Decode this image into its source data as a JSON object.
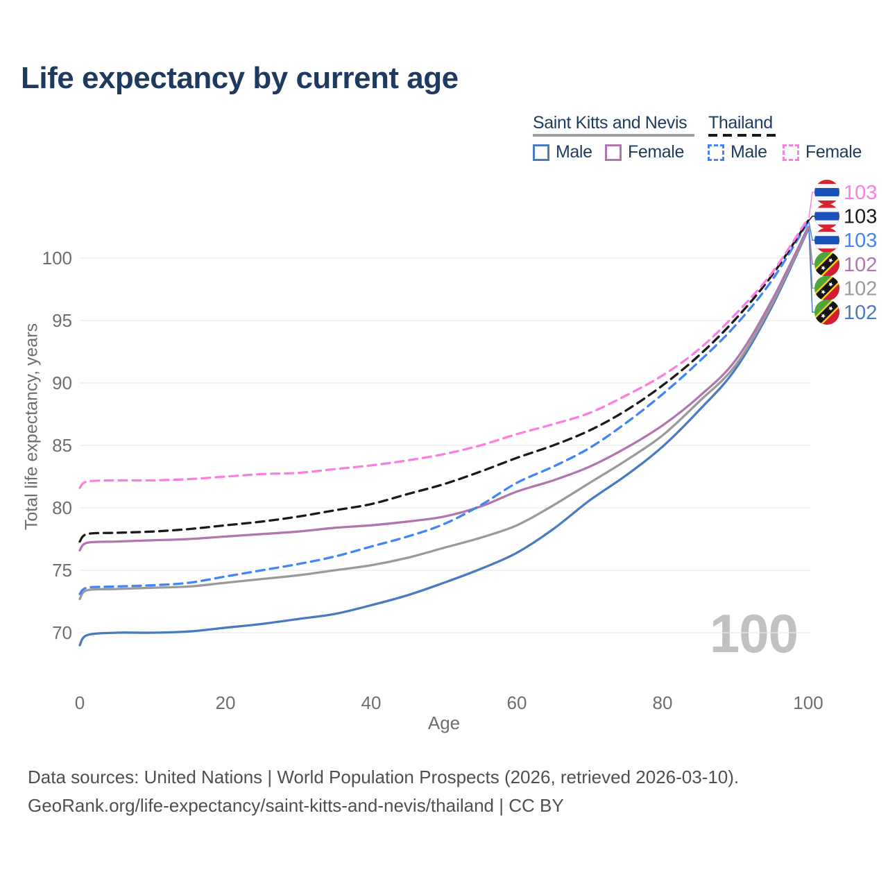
{
  "title": "Life expectancy by current age",
  "legend": {
    "groups": [
      {
        "label": "Saint Kitts and Nevis",
        "line_style": "solid",
        "line_color": "#a0a0a0",
        "items": [
          {
            "label": "Male",
            "color": "#4a7ac1",
            "dashed": false
          },
          {
            "label": "Female",
            "color": "#b176ad",
            "dashed": false
          }
        ]
      },
      {
        "label": "Thailand",
        "line_style": "dashed",
        "line_color": "#1a1a1a",
        "items": [
          {
            "label": "Male",
            "color": "#4285f4",
            "dashed": true
          },
          {
            "label": "Female",
            "color": "#fc7fe0",
            "dashed": true
          }
        ]
      }
    ]
  },
  "footer": {
    "line1": "Data sources: United Nations | World Population Prospects (2026, retrieved 2026-03-10).",
    "line2": "GeoRank.org/life-expectancy/saint-kitts-and-nevis/thailand | CC BY"
  },
  "flags": {
    "thailand": {
      "red": "#d8222f",
      "white": "#f4f5f8",
      "blue": "#1b52ba"
    },
    "saint_kitts_and_nevis": {
      "green": "#4fa53c",
      "red": "#d21f30",
      "black": "#141414",
      "yellow": "#fcd116",
      "star": "#ffffff"
    }
  },
  "chart_data": {
    "type": "line",
    "title": "Life expectancy by current age",
    "xlabel": "Age",
    "ylabel": "Total life expectancy, years",
    "age_counter": "100",
    "xlim": [
      0,
      100
    ],
    "ylim": [
      67,
      104
    ],
    "xticks": [
      0,
      20,
      40,
      60,
      80,
      100
    ],
    "yticks": [
      70,
      75,
      80,
      85,
      90,
      95,
      100
    ],
    "grid": "horizontal",
    "legend_position": "top-right",
    "x": [
      0,
      1,
      5,
      10,
      15,
      20,
      25,
      30,
      35,
      40,
      45,
      50,
      55,
      60,
      65,
      70,
      75,
      80,
      85,
      90,
      95,
      100
    ],
    "series": [
      {
        "name": "Saint Kitts and Nevis Male",
        "country": "Saint Kitts and Nevis",
        "sex": "male",
        "color": "#4a7ac1",
        "dash": false,
        "flag": "saint_kitts_and_nevis",
        "end_label": "102",
        "values": [
          69.0,
          69.8,
          70.0,
          70.0,
          70.1,
          70.4,
          70.7,
          71.1,
          71.5,
          72.2,
          73.0,
          74.0,
          75.1,
          76.4,
          78.3,
          80.6,
          82.6,
          84.9,
          87.8,
          91.1,
          96.1,
          102.3
        ]
      },
      {
        "name": "Saint Kitts and Nevis Both sexes",
        "country": "Saint Kitts and Nevis",
        "sex": "both",
        "color": "#9a9a9a",
        "dash": false,
        "flag": "saint_kitts_and_nevis",
        "end_label": "102",
        "values": [
          72.7,
          73.4,
          73.5,
          73.6,
          73.7,
          74.0,
          74.3,
          74.6,
          75.0,
          75.4,
          76.0,
          76.8,
          77.6,
          78.6,
          80.2,
          82.0,
          83.8,
          85.8,
          88.5,
          91.4,
          96.3,
          102.4
        ]
      },
      {
        "name": "Saint Kitts and Nevis Female",
        "country": "Saint Kitts and Nevis",
        "sex": "female",
        "color": "#b176ad",
        "dash": false,
        "flag": "saint_kitts_and_nevis",
        "end_label": "102",
        "values": [
          76.6,
          77.2,
          77.3,
          77.4,
          77.5,
          77.7,
          77.9,
          78.1,
          78.4,
          78.6,
          78.9,
          79.3,
          80.1,
          81.3,
          82.2,
          83.3,
          84.8,
          86.6,
          88.9,
          91.8,
          96.6,
          102.5
        ]
      },
      {
        "name": "Thailand Male",
        "country": "Thailand",
        "sex": "male",
        "color": "#4285f4",
        "dash": true,
        "flag": "thailand",
        "end_label": "103",
        "values": [
          73.1,
          73.6,
          73.7,
          73.8,
          74.0,
          74.5,
          75.0,
          75.5,
          76.1,
          76.9,
          77.7,
          78.7,
          80.2,
          82.0,
          83.3,
          84.8,
          86.8,
          89.1,
          91.7,
          94.6,
          98.2,
          102.9
        ]
      },
      {
        "name": "Thailand Both sexes",
        "country": "Thailand",
        "sex": "both",
        "color": "#1a1a1a",
        "dash": true,
        "flag": "thailand",
        "end_label": "103",
        "values": [
          77.3,
          77.9,
          78.0,
          78.1,
          78.3,
          78.6,
          78.9,
          79.3,
          79.8,
          80.3,
          81.1,
          81.9,
          82.9,
          84.0,
          85.0,
          86.2,
          87.8,
          89.8,
          92.2,
          95.1,
          98.6,
          103.0
        ]
      },
      {
        "name": "Thailand Female",
        "country": "Thailand",
        "sex": "female",
        "color": "#fc7fe0",
        "dash": true,
        "flag": "thailand",
        "end_label": "103",
        "values": [
          81.6,
          82.1,
          82.2,
          82.2,
          82.3,
          82.5,
          82.7,
          82.8,
          83.1,
          83.4,
          83.8,
          84.3,
          85.0,
          85.9,
          86.7,
          87.6,
          89.0,
          90.6,
          92.7,
          95.5,
          98.8,
          103.2
        ]
      }
    ]
  }
}
